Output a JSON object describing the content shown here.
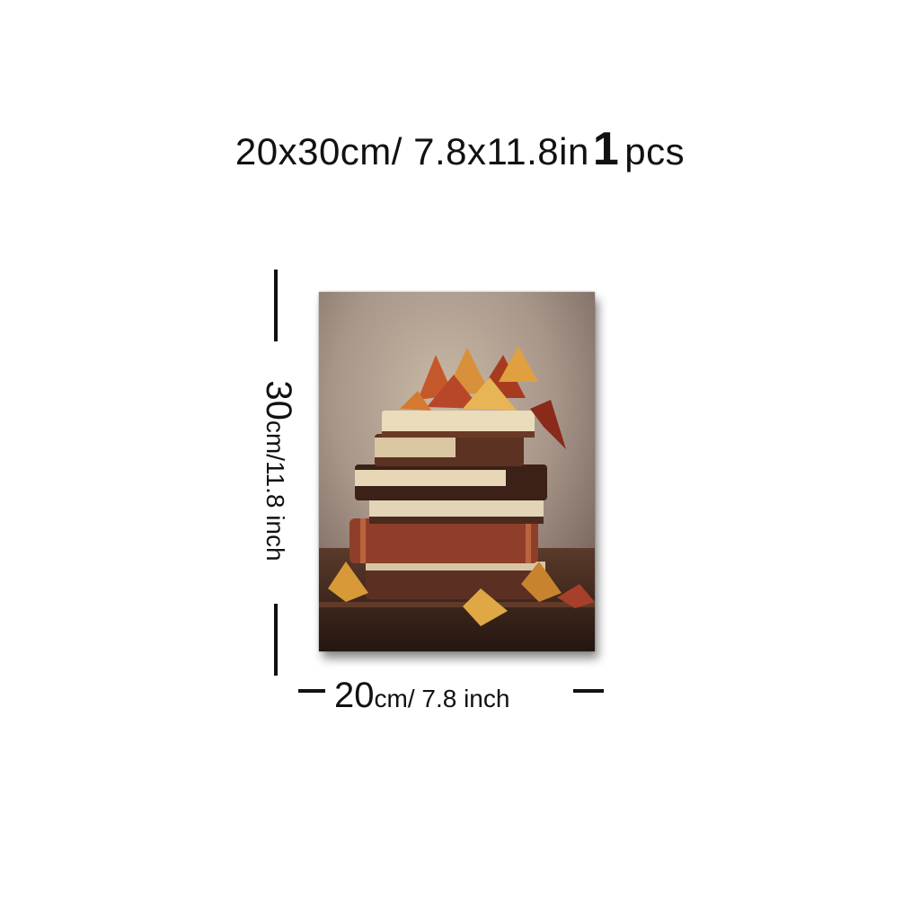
{
  "title": {
    "size_text": "20x30cm/ 7.8x11.8in",
    "quantity": "1",
    "unit": "pcs"
  },
  "height_label": {
    "number": "30",
    "unit": "cm/11.8 inch"
  },
  "width_label": {
    "number": "20",
    "unit": "cm/ 7.8 inch"
  }
}
